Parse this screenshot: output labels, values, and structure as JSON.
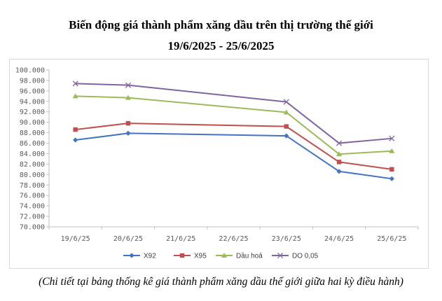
{
  "title_line1": "Biến động giá thành phẩm xăng dầu trên thị trường thế giới",
  "title_line2": "19/6/2025 - 25/6/2025",
  "caption": "(Chi tiết tại bảng thống kê giá thành phẩm xăng dầu thế giới giữa hai kỳ điều hành)",
  "chart_data": {
    "type": "line",
    "categories": [
      "19/6/25",
      "20/6/25",
      "21/6/25",
      "22/6/25",
      "23/6/25",
      "24/6/25",
      "25/6/25"
    ],
    "ylim": [
      70000,
      100000
    ],
    "yticks": [
      "70.000",
      "72.000",
      "74.000",
      "76.000",
      "78.000",
      "80.000",
      "82.000",
      "84.000",
      "86.000",
      "88.000",
      "90.000",
      "92.000",
      "94.000",
      "96.000",
      "98.000",
      "100.000"
    ],
    "ytick_values": [
      70000,
      72000,
      74000,
      76000,
      78000,
      80000,
      82000,
      84000,
      86000,
      88000,
      90000,
      92000,
      94000,
      96000,
      98000,
      100000
    ],
    "grid": false,
    "legend_position": "bottom",
    "series": [
      {
        "name": "X92",
        "color": "#4472c4",
        "marker": "diamond",
        "values": [
          86600,
          87900,
          null,
          null,
          87400,
          80600,
          79200
        ]
      },
      {
        "name": "X95",
        "color": "#c0504d",
        "marker": "square",
        "values": [
          88600,
          89800,
          null,
          null,
          89200,
          82400,
          81000
        ]
      },
      {
        "name": "Dầu hoả",
        "color": "#9bbb59",
        "marker": "triangle",
        "values": [
          95000,
          94700,
          null,
          null,
          91900,
          83900,
          84500
        ]
      },
      {
        "name": "DO 0,05",
        "color": "#8064a2",
        "marker": "x",
        "values": [
          97400,
          97100,
          null,
          null,
          93900,
          86000,
          86900
        ]
      }
    ]
  }
}
